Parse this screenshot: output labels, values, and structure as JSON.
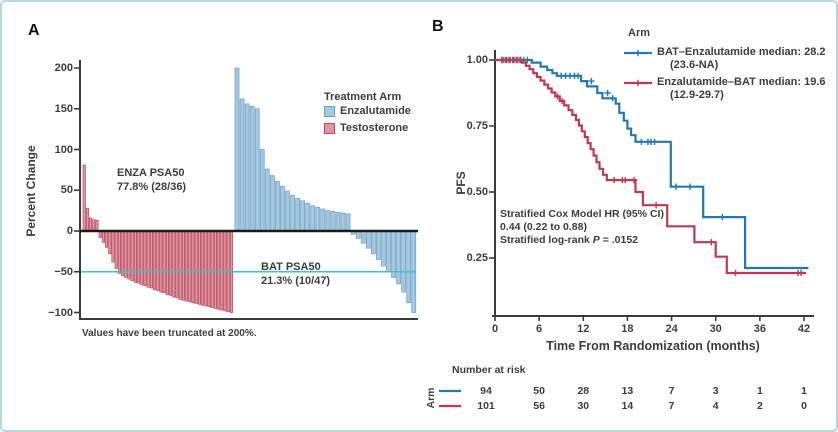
{
  "figure": {
    "panel_a_label": "A",
    "panel_b_label": "B"
  },
  "colors": {
    "km_blue": "#2478b0",
    "km_red": "#bf3a50",
    "bar_blue_fill": "#a6c7e0",
    "bar_blue_stroke": "#6a9fc5",
    "bar_red_fill": "#dd97a1",
    "bar_red_stroke": "#b8495d",
    "reference_teal": "#3ec3c3",
    "axis": "#3a3a3a",
    "zero_line": "#1a1a1a",
    "text": "#3d3d3d",
    "figure_border": "#b7d8e2"
  },
  "chart_data": [
    {
      "type": "bar",
      "subtype": "waterfall",
      "title": "",
      "ylabel": "Percent Change",
      "ylim": [
        -100,
        200
      ],
      "truncated_at": 200,
      "reference_line": -50,
      "footnote": "Values have been truncated at 200%.",
      "y_ticks": [
        {
          "label": "200",
          "value": 200
        },
        {
          "label": "150",
          "value": 150
        },
        {
          "label": "100",
          "value": 100
        },
        {
          "label": "50",
          "value": 50
        },
        {
          "label": "0",
          "value": 0
        },
        {
          "label": "−50",
          "value": -50
        },
        {
          "label": "−100",
          "value": -100
        }
      ],
      "annotations": {
        "enza": [
          "ENZA PSA50",
          "77.8% (28/36)"
        ],
        "bat": [
          "BAT PSA50",
          "21.3% (10/47)"
        ]
      },
      "legend": {
        "title": "Treatment Arm",
        "items": [
          {
            "label": "Enzalutamide",
            "fill": "#a6c7e0",
            "border": "#6a9fc5"
          },
          {
            "label": "Testosterone",
            "fill": "#dd97a1",
            "border": "#b8495d"
          }
        ]
      },
      "series": [
        {
          "name": "Testosterone",
          "position": "left",
          "values": [
            81,
            28,
            16,
            14,
            13,
            -8,
            -14,
            -20,
            -28,
            -38,
            -46,
            -52,
            -55,
            -57,
            -59,
            -61,
            -63,
            -64,
            -66,
            -67,
            -69,
            -70,
            -72,
            -73,
            -75,
            -76,
            -78,
            -79,
            -81,
            -82,
            -84,
            -85,
            -86,
            -87,
            -88,
            -89,
            -90,
            -91,
            -92,
            -93,
            -94,
            -95,
            -96,
            -97,
            -98,
            -99,
            -100
          ]
        },
        {
          "name": "Enzalutamide",
          "position": "right",
          "values": [
            200,
            162,
            156,
            153,
            150,
            100,
            76,
            68,
            61,
            55,
            49,
            44,
            40,
            37,
            34,
            31,
            29,
            27,
            25,
            24,
            23,
            22,
            21,
            -4,
            -9,
            -15,
            -21,
            -28,
            -35,
            -43,
            -50,
            -57,
            -65,
            -75,
            -88,
            -100
          ]
        }
      ]
    },
    {
      "type": "line",
      "subtype": "kaplan-meier",
      "title": "",
      "xlabel": "Time From Randomization (months)",
      "ylabel": "PFS",
      "xlim": [
        0,
        42
      ],
      "ylim": [
        0,
        1.0
      ],
      "x_ticks": [
        0,
        6,
        12,
        18,
        24,
        30,
        36,
        42
      ],
      "y_ticks": [
        {
          "label": "1.00",
          "value": 1.0
        },
        {
          "label": "0.75",
          "value": 0.75
        },
        {
          "label": "0.50",
          "value": 0.5
        },
        {
          "label": "0.25",
          "value": 0.25
        }
      ],
      "legend": {
        "title": "Arm"
      },
      "stats": {
        "line1": "Stratified Cox Model HR (95% CI)",
        "line2": "0.44 (0.22 to 0.88)",
        "line3_prefix": "Stratified log-rank ",
        "line3_p": "P",
        "line3_rest": " = .0152"
      },
      "series": [
        {
          "name": "BAT-Enzalutamide",
          "color": "#2478b0",
          "legend_line1": "BAT–Enzalutamide median: 28.2",
          "legend_line2": "(23.6-NA)",
          "steps": [
            [
              0,
              1
            ],
            [
              5,
              1
            ],
            [
              5,
              0.99
            ],
            [
              6.2,
              0.99
            ],
            [
              6.2,
              0.975
            ],
            [
              7.1,
              0.975
            ],
            [
              7.1,
              0.962
            ],
            [
              7.8,
              0.962
            ],
            [
              7.8,
              0.95
            ],
            [
              8.4,
              0.95
            ],
            [
              8.4,
              0.94
            ],
            [
              11.7,
              0.94
            ],
            [
              11.7,
              0.92
            ],
            [
              12.5,
              0.92
            ],
            [
              12.5,
              0.9
            ],
            [
              13.9,
              0.9
            ],
            [
              13.9,
              0.875
            ],
            [
              14.6,
              0.875
            ],
            [
              14.6,
              0.855
            ],
            [
              16.4,
              0.855
            ],
            [
              16.4,
              0.835
            ],
            [
              16.9,
              0.835
            ],
            [
              16.9,
              0.8
            ],
            [
              17.5,
              0.8
            ],
            [
              17.5,
              0.77
            ],
            [
              18,
              0.77
            ],
            [
              18,
              0.74
            ],
            [
              18.5,
              0.74
            ],
            [
              18.5,
              0.715
            ],
            [
              19.1,
              0.715
            ],
            [
              19.1,
              0.69
            ],
            [
              23.9,
              0.69
            ],
            [
              23.9,
              0.52
            ],
            [
              28.3,
              0.52
            ],
            [
              28.3,
              0.405
            ],
            [
              34,
              0.405
            ],
            [
              34,
              0.212
            ],
            [
              42.6,
              0.212
            ]
          ],
          "censors": [
            [
              0.9,
              1
            ],
            [
              1.4,
              1
            ],
            [
              1.9,
              1
            ],
            [
              2.4,
              1
            ],
            [
              2.9,
              1
            ],
            [
              3.4,
              1
            ],
            [
              3.9,
              1
            ],
            [
              4.4,
              1
            ],
            [
              9,
              0.94
            ],
            [
              9.6,
              0.94
            ],
            [
              10.2,
              0.94
            ],
            [
              10.8,
              0.94
            ],
            [
              11.3,
              0.94
            ],
            [
              13.1,
              0.92
            ],
            [
              15.3,
              0.875
            ],
            [
              16,
              0.855
            ],
            [
              19.9,
              0.69
            ],
            [
              20.8,
              0.69
            ],
            [
              21.2,
              0.69
            ],
            [
              21.7,
              0.69
            ],
            [
              24.6,
              0.52
            ],
            [
              26.5,
              0.52
            ],
            [
              30.9,
              0.405
            ]
          ]
        },
        {
          "name": "Enzalutamide-BAT",
          "color": "#bf3a50",
          "legend_line1": "Enzalutamide–BAT median: 19.6",
          "legend_line2": "(12.9-29.7)",
          "steps": [
            [
              0,
              1
            ],
            [
              3.7,
              1
            ],
            [
              3.7,
              0.99
            ],
            [
              4.2,
              0.99
            ],
            [
              4.2,
              0.978
            ],
            [
              4.7,
              0.978
            ],
            [
              4.7,
              0.965
            ],
            [
              5.2,
              0.965
            ],
            [
              5.2,
              0.95
            ],
            [
              5.7,
              0.95
            ],
            [
              5.7,
              0.936
            ],
            [
              6.2,
              0.936
            ],
            [
              6.2,
              0.922
            ],
            [
              6.7,
              0.922
            ],
            [
              6.7,
              0.907
            ],
            [
              7.2,
              0.907
            ],
            [
              7.2,
              0.892
            ],
            [
              7.7,
              0.892
            ],
            [
              7.7,
              0.877
            ],
            [
              8.2,
              0.877
            ],
            [
              8.2,
              0.862
            ],
            [
              8.8,
              0.862
            ],
            [
              8.8,
              0.845
            ],
            [
              9.4,
              0.845
            ],
            [
              9.4,
              0.828
            ],
            [
              10,
              0.828
            ],
            [
              10,
              0.81
            ],
            [
              10.5,
              0.81
            ],
            [
              10.5,
              0.792
            ],
            [
              11,
              0.792
            ],
            [
              11,
              0.773
            ],
            [
              11.4,
              0.773
            ],
            [
              11.4,
              0.752
            ],
            [
              11.8,
              0.752
            ],
            [
              11.8,
              0.73
            ],
            [
              12.2,
              0.73
            ],
            [
              12.2,
              0.708
            ],
            [
              12.6,
              0.708
            ],
            [
              12.6,
              0.685
            ],
            [
              13,
              0.685
            ],
            [
              13,
              0.662
            ],
            [
              13.4,
              0.662
            ],
            [
              13.4,
              0.638
            ],
            [
              13.8,
              0.638
            ],
            [
              13.8,
              0.613
            ],
            [
              14.2,
              0.613
            ],
            [
              14.2,
              0.588
            ],
            [
              14.7,
              0.588
            ],
            [
              14.7,
              0.565
            ],
            [
              15.2,
              0.565
            ],
            [
              15.2,
              0.545
            ],
            [
              19.1,
              0.545
            ],
            [
              19.1,
              0.5
            ],
            [
              20.1,
              0.5
            ],
            [
              20.1,
              0.45
            ],
            [
              23.4,
              0.45
            ],
            [
              23.4,
              0.37
            ],
            [
              27.1,
              0.37
            ],
            [
              27.1,
              0.31
            ],
            [
              30,
              0.31
            ],
            [
              30,
              0.255
            ],
            [
              31.5,
              0.255
            ],
            [
              31.5,
              0.193
            ],
            [
              42.3,
              0.193
            ]
          ],
          "censors": [
            [
              1.1,
              1
            ],
            [
              1.6,
              1
            ],
            [
              2.1,
              1
            ],
            [
              2.6,
              1
            ],
            [
              3.1,
              1
            ],
            [
              3.5,
              1
            ],
            [
              8.5,
              0.862
            ],
            [
              9.1,
              0.845
            ],
            [
              16.2,
              0.545
            ],
            [
              17.3,
              0.545
            ],
            [
              17.7,
              0.545
            ],
            [
              18.9,
              0.545
            ],
            [
              21.9,
              0.45
            ],
            [
              29.4,
              0.31
            ],
            [
              32.7,
              0.193
            ],
            [
              41.2,
              0.193
            ],
            [
              41.6,
              0.193
            ]
          ]
        }
      ],
      "risk_table": {
        "header": "Number at risk",
        "axis_label": "Arm",
        "rows": [
          {
            "series": "BAT-Enzalutamide",
            "counts": [
              94,
              50,
              28,
              13,
              7,
              3,
              1,
              1
            ]
          },
          {
            "series": "Enzalutamide-BAT",
            "counts": [
              101,
              56,
              30,
              14,
              7,
              4,
              2,
              0
            ]
          }
        ]
      }
    }
  ]
}
